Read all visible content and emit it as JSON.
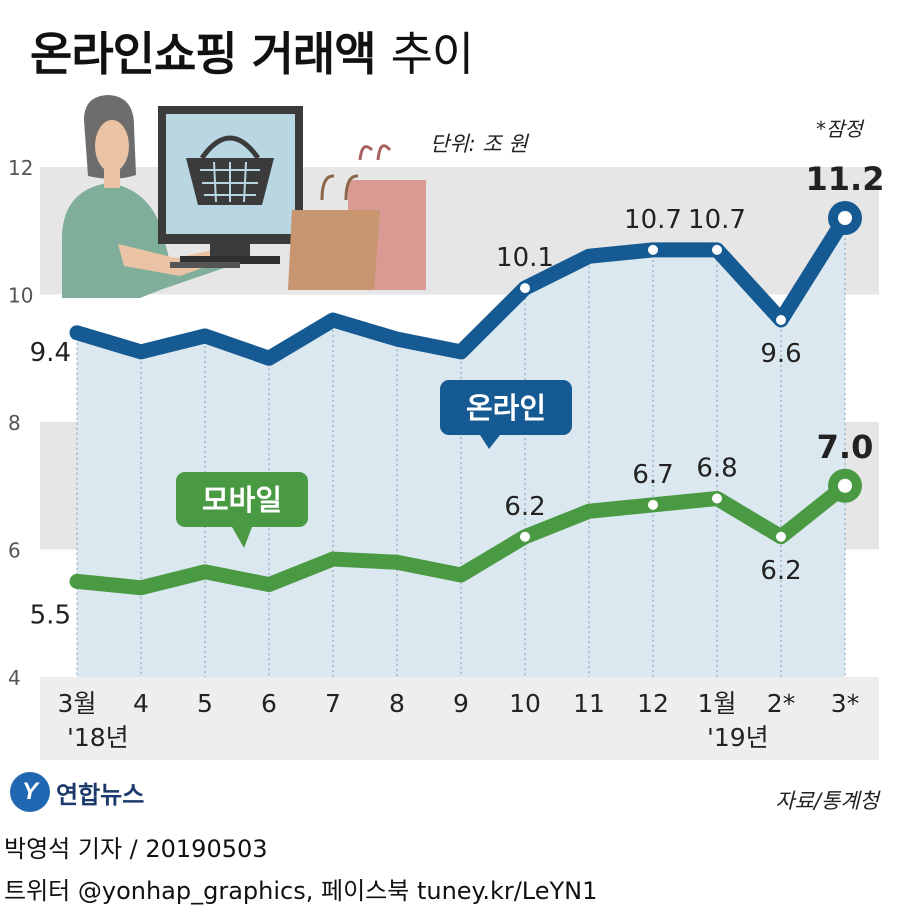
{
  "title": {
    "bold": "온라인쇼핑 거래액",
    "light": "추이"
  },
  "unit_note": "단위: 조 원",
  "prelim_note": "*잠정",
  "source": "자료/통계청",
  "logo": {
    "mark": "Y",
    "text": "연합뉴스"
  },
  "footer": {
    "line1": "박영석 기자 /  20190503",
    "line2": "트위터 @yonhap_graphics, 페이스북 tuney.kr/LeYN1"
  },
  "colors": {
    "online": "#165a93",
    "mobile": "#4a9a44",
    "band": "#e6e6e6",
    "area": "#dce8ef"
  },
  "icons": [
    "woman-at-computer-illustration",
    "shopping-basket-icon",
    "shopping-bags-icon"
  ],
  "chart_data": {
    "type": "line",
    "categories": [
      "3월",
      "4",
      "5",
      "6",
      "7",
      "8",
      "9",
      "10",
      "11",
      "12",
      "1월",
      "2*",
      "3*"
    ],
    "year_labels": [
      {
        "index": 0,
        "text": "'18년"
      },
      {
        "index": 10,
        "text": "'19년"
      }
    ],
    "ylim": [
      4,
      12
    ],
    "yticks": [
      "4",
      "6",
      "8",
      "10",
      "12"
    ],
    "grid": "alternating gray bands",
    "series": [
      {
        "name": "온라인",
        "values": [
          9.4,
          9.1,
          9.35,
          9.0,
          9.6,
          9.3,
          9.1,
          10.1,
          10.6,
          10.7,
          10.7,
          9.6,
          11.2
        ],
        "labels": [
          {
            "index": 0,
            "text": "9.4"
          },
          {
            "index": 7,
            "text": "10.1"
          },
          {
            "index": 9,
            "text": "10.7"
          },
          {
            "index": 10,
            "text": "10.7"
          },
          {
            "index": 11,
            "text": "9.6"
          },
          {
            "index": 12,
            "text": "11.2"
          }
        ]
      },
      {
        "name": "모바일",
        "values": [
          5.5,
          5.4,
          5.65,
          5.45,
          5.85,
          5.8,
          5.6,
          6.2,
          6.6,
          6.7,
          6.8,
          6.2,
          7.0
        ],
        "labels": [
          {
            "index": 0,
            "text": "5.5"
          },
          {
            "index": 7,
            "text": "6.2"
          },
          {
            "index": 9,
            "text": "6.7"
          },
          {
            "index": 10,
            "text": "6.8"
          },
          {
            "index": 11,
            "text": "6.2"
          },
          {
            "index": 12,
            "text": "7.0"
          }
        ]
      }
    ]
  }
}
